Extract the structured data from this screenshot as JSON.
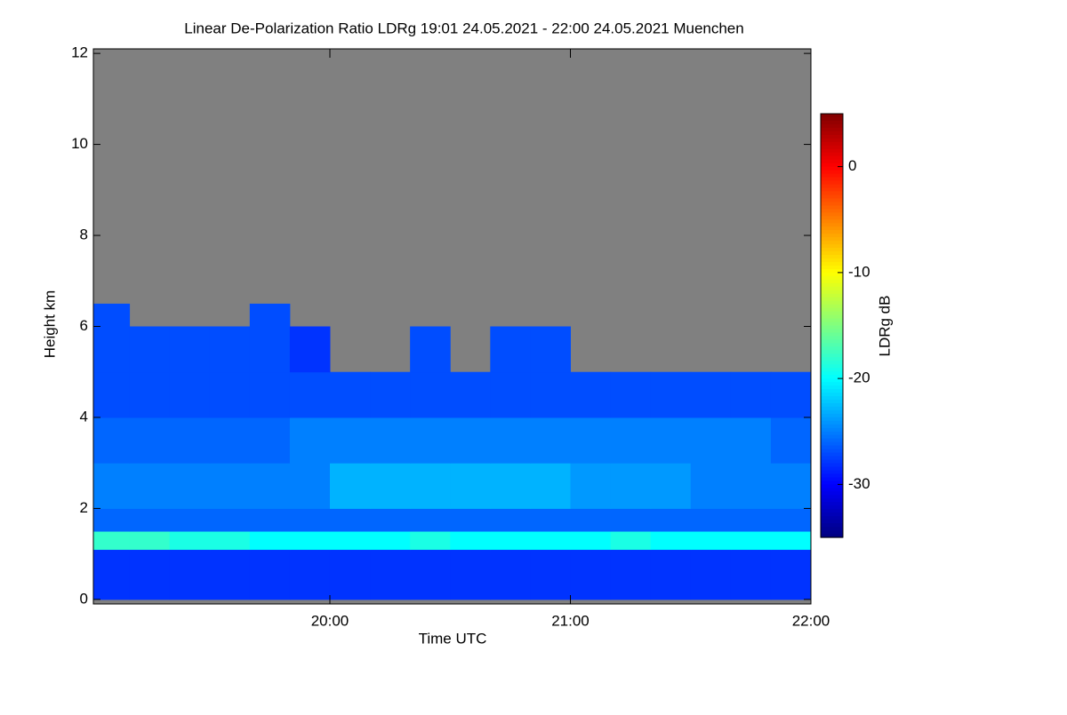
{
  "chart_data": {
    "type": "heatmap",
    "title": "Linear De-Polarization Ratio LDRg   19:01 24.05.2021 - 22:00 24.05.2021 Muenchen",
    "x_label": "Time UTC",
    "y_label": "Height km",
    "colorbar_label": "LDRg dB",
    "xbins": [
      19.0167,
      19.1667,
      19.3333,
      19.5,
      19.6667,
      19.8333,
      20.0,
      20.1667,
      20.3333,
      20.5,
      20.6667,
      20.8333,
      21.0,
      21.1667,
      21.3333,
      21.5,
      21.6667,
      21.8333,
      22.0
    ],
    "ybins": [
      0,
      1.1,
      1.5,
      2,
      3,
      4,
      5,
      6,
      6.5
    ],
    "values": [
      [
        -28,
        -28,
        -28,
        -28,
        -28,
        -28,
        -28,
        -28,
        -28,
        -28,
        -28,
        -28,
        -28,
        -28,
        -28,
        -28,
        -28,
        -28
      ],
      [
        -18,
        -18,
        -19,
        -19,
        -20,
        -20,
        -20,
        -20,
        -19,
        -20,
        -20,
        -20,
        -20,
        -19,
        -20,
        -20,
        -20,
        -20
      ],
      [
        -26,
        -26,
        -26,
        -26,
        -26,
        -26,
        -26,
        -26,
        -26,
        -26,
        -26,
        -26,
        -26,
        -26,
        -26,
        -26,
        -26,
        -26
      ],
      [
        -25,
        -25,
        -25,
        -25,
        -25,
        -25,
        -23,
        -23,
        -23,
        -23,
        -23,
        -23,
        -24,
        -24,
        -24,
        -25,
        -25,
        -25
      ],
      [
        -26,
        -26,
        -26,
        -26,
        -26,
        -25,
        -25,
        -25,
        -25,
        -25,
        -25,
        -25,
        -25,
        -25,
        -25,
        -25,
        -25,
        -26
      ],
      [
        -27,
        -27,
        -27,
        -27,
        -27,
        -27,
        -27,
        -27,
        -27,
        -27,
        -27,
        -27,
        -27,
        -27,
        -27,
        -27,
        -27,
        -27
      ],
      [
        -27,
        -27,
        -27,
        -27,
        -27,
        -28,
        null,
        null,
        -27,
        null,
        -27,
        -27,
        null,
        null,
        null,
        null,
        null,
        null
      ],
      [
        -27,
        null,
        null,
        null,
        -27,
        null,
        null,
        null,
        null,
        null,
        null,
        null,
        null,
        null,
        null,
        null,
        null,
        null
      ]
    ],
    "missing_color": "#808080",
    "colormap": "jet",
    "xlim": [
      19.0167,
      22.0
    ],
    "xticks": [
      {
        "value": 20,
        "label": "20:00"
      },
      {
        "value": 21,
        "label": "21:00"
      },
      {
        "value": 22,
        "label": "22:00"
      }
    ],
    "ylim": [
      -0.1,
      12.1
    ],
    "yticks": [
      0,
      2,
      4,
      6,
      8,
      10,
      12
    ],
    "zlim": [
      -35,
      5
    ],
    "zticks": [
      0,
      -10,
      -20,
      -30
    ]
  }
}
